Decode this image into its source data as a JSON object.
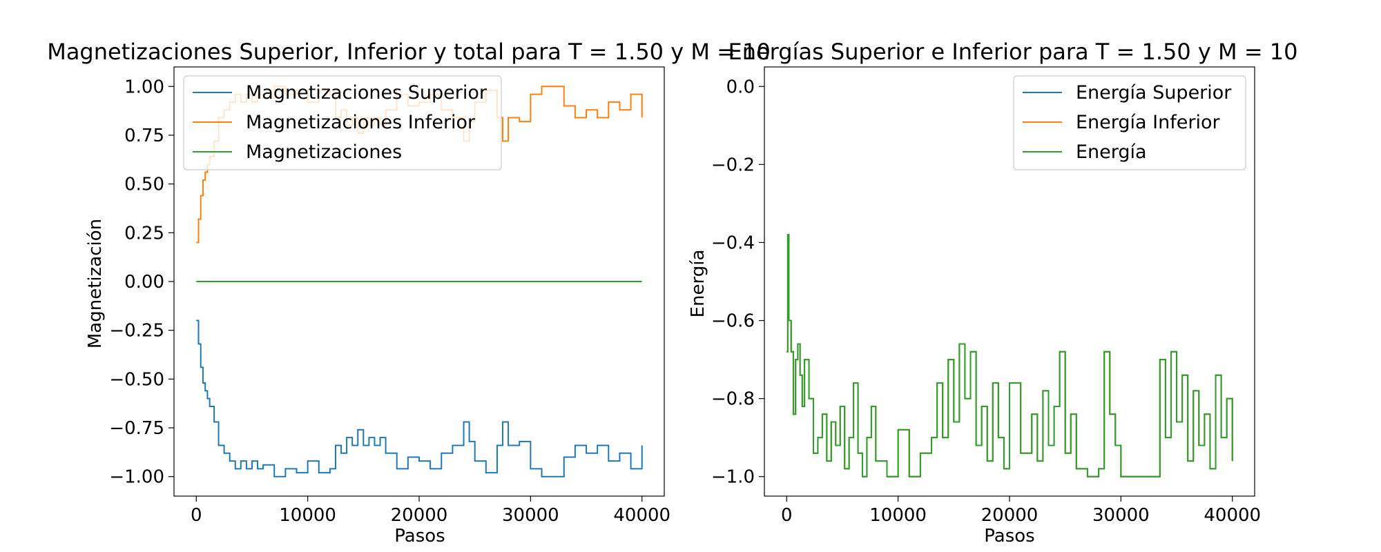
{
  "chart_data": [
    {
      "type": "line",
      "title": "Magnetizaciones Superior, Inferior y total para T = 1.50 y M = 10",
      "xlabel": "Pasos",
      "ylabel": "Magnetización",
      "xlim": [
        -2000,
        42000
      ],
      "ylim": [
        -1.1,
        1.1
      ],
      "xticks": [
        0,
        10000,
        20000,
        30000,
        40000
      ],
      "xtick_labels": [
        "0",
        "10000",
        "20000",
        "30000",
        "40000"
      ],
      "yticks": [
        1.0,
        0.75,
        0.5,
        0.25,
        0.0,
        -0.25,
        -0.5,
        -0.75,
        -1.0
      ],
      "ytick_labels": [
        "1.00",
        "0.75",
        "0.50",
        "0.25",
        "0.00",
        "−0.25",
        "−0.50",
        "−0.75",
        "−1.00"
      ],
      "grid": false,
      "legend_position": "top-left",
      "series": [
        {
          "name": "Magnetizaciones Superior",
          "color": "#1f77b4",
          "x": [
            0,
            200,
            400,
            600,
            800,
            1000,
            1200,
            1600,
            2000,
            2500,
            3000,
            3500,
            4000,
            4500,
            5000,
            5500,
            6000,
            7000,
            8000,
            9000,
            10000,
            11000,
            12000,
            12500,
            13000,
            13500,
            14000,
            14500,
            15000,
            15500,
            16000,
            16500,
            17000,
            18000,
            19000,
            20000,
            21000,
            22000,
            23000,
            24000,
            24500,
            25000,
            26000,
            27000,
            27500,
            28000,
            29000,
            30000,
            31000,
            32000,
            33000,
            34000,
            35000,
            36000,
            37000,
            38000,
            39000,
            40000
          ],
          "y": [
            -0.2,
            -0.32,
            -0.44,
            -0.52,
            -0.56,
            -0.6,
            -0.64,
            -0.72,
            -0.84,
            -0.88,
            -0.92,
            -0.96,
            -0.92,
            -0.96,
            -0.92,
            -0.96,
            -0.94,
            -1.0,
            -0.96,
            -0.98,
            -0.92,
            -0.98,
            -0.96,
            -0.84,
            -0.88,
            -0.8,
            -0.84,
            -0.76,
            -0.84,
            -0.8,
            -0.84,
            -0.8,
            -0.88,
            -0.96,
            -0.9,
            -0.92,
            -0.96,
            -0.88,
            -0.84,
            -0.72,
            -0.82,
            -0.92,
            -0.98,
            -0.84,
            -0.72,
            -0.84,
            -0.82,
            -0.96,
            -1.0,
            -1.0,
            -0.9,
            -0.84,
            -0.88,
            -0.84,
            -0.92,
            -0.88,
            -0.96,
            -0.84
          ]
        },
        {
          "name": "Magnetizaciones Inferior",
          "color": "#ff7f0e",
          "x": [
            0,
            200,
            400,
            600,
            800,
            1000,
            1200,
            1600,
            2000,
            2500,
            3000,
            3500,
            4000,
            4500,
            5000,
            5500,
            6000,
            7000,
            8000,
            9000,
            10000,
            11000,
            12000,
            12500,
            13000,
            13500,
            14000,
            14500,
            15000,
            15500,
            16000,
            16500,
            17000,
            18000,
            19000,
            20000,
            21000,
            22000,
            23000,
            24000,
            24500,
            25000,
            26000,
            27000,
            27500,
            28000,
            29000,
            30000,
            31000,
            32000,
            33000,
            34000,
            35000,
            36000,
            37000,
            38000,
            39000,
            40000
          ],
          "y": [
            0.2,
            0.32,
            0.44,
            0.52,
            0.56,
            0.6,
            0.64,
            0.72,
            0.84,
            0.88,
            0.92,
            0.96,
            0.92,
            0.96,
            0.92,
            0.96,
            0.94,
            1.0,
            0.96,
            0.98,
            0.92,
            0.98,
            0.96,
            0.84,
            0.88,
            0.8,
            0.84,
            0.76,
            0.84,
            0.8,
            0.84,
            0.8,
            0.88,
            0.96,
            0.9,
            0.92,
            0.96,
            0.88,
            0.84,
            0.72,
            0.82,
            0.92,
            0.98,
            0.84,
            0.72,
            0.84,
            0.82,
            0.96,
            1.0,
            1.0,
            0.9,
            0.84,
            0.88,
            0.84,
            0.92,
            0.88,
            0.96,
            0.84
          ]
        },
        {
          "name": "Magnetizaciones",
          "color": "#2ca02c",
          "x": [
            0,
            40000
          ],
          "y": [
            0.0,
            0.0
          ]
        }
      ]
    },
    {
      "type": "line",
      "title": "Energías Superior e Inferior para T = 1.50 y M = 10",
      "xlabel": "Pasos",
      "ylabel": "Energía",
      "xlim": [
        -2000,
        42000
      ],
      "ylim": [
        -1.05,
        0.05
      ],
      "xticks": [
        0,
        10000,
        20000,
        30000,
        40000
      ],
      "xtick_labels": [
        "0",
        "10000",
        "20000",
        "30000",
        "40000"
      ],
      "yticks": [
        0.0,
        -0.2,
        -0.4,
        -0.6,
        -0.8,
        -1.0
      ],
      "ytick_labels": [
        "0.0",
        "−0.2",
        "−0.4",
        "−0.6",
        "−0.8",
        "−1.0"
      ],
      "grid": false,
      "legend_position": "top-right",
      "series": [
        {
          "name": "Energía Superior",
          "color": "#1f77b4",
          "x": [
            0,
            100,
            200,
            400,
            600,
            800,
            1000,
            1200,
            1400,
            1600,
            2000,
            2400,
            2800,
            3200,
            3600,
            4000,
            4400,
            4800,
            5200,
            5600,
            6000,
            6400,
            6800,
            7200,
            7600,
            8000,
            9000,
            10000,
            11000,
            12000,
            13000,
            13500,
            14000,
            14500,
            15000,
            15500,
            16000,
            16500,
            17000,
            17500,
            18000,
            18500,
            19000,
            19500,
            20000,
            21000,
            22000,
            22500,
            23000,
            23500,
            24000,
            24500,
            25000,
            25500,
            26000,
            27000,
            28000,
            28500,
            29000,
            29500,
            30000,
            31000,
            32000,
            33000,
            33500,
            34000,
            34500,
            35000,
            35500,
            36000,
            36500,
            37000,
            37500,
            38000,
            38500,
            39000,
            39500,
            40000
          ],
          "y": [
            -0.68,
            -0.38,
            -0.6,
            -0.68,
            -0.84,
            -0.7,
            -0.66,
            -0.74,
            -0.82,
            -0.7,
            -0.8,
            -0.94,
            -0.9,
            -0.84,
            -0.96,
            -0.86,
            -0.92,
            -0.82,
            -0.98,
            -0.9,
            -0.76,
            -0.94,
            -1.0,
            -0.9,
            -0.82,
            -0.96,
            -1.0,
            -0.88,
            -1.0,
            -0.94,
            -0.9,
            -0.76,
            -0.9,
            -0.7,
            -0.86,
            -0.66,
            -0.8,
            -0.68,
            -0.92,
            -0.82,
            -0.96,
            -0.76,
            -0.9,
            -0.98,
            -0.76,
            -0.94,
            -0.84,
            -0.96,
            -0.78,
            -0.92,
            -0.82,
            -0.68,
            -0.94,
            -0.84,
            -0.98,
            -1.0,
            -0.98,
            -0.68,
            -0.84,
            -0.92,
            -1.0,
            -1.0,
            -1.0,
            -1.0,
            -0.7,
            -0.9,
            -0.68,
            -0.86,
            -0.74,
            -0.96,
            -0.78,
            -0.92,
            -0.84,
            -0.98,
            -0.74,
            -0.9,
            -0.8,
            -0.96
          ]
        },
        {
          "name": "Energía Inferior",
          "color": "#ff7f0e",
          "x": [
            0,
            100,
            200,
            400,
            600,
            800,
            1000,
            1200,
            1400,
            1600,
            2000,
            2400,
            2800,
            3200,
            3600,
            4000,
            4400,
            4800,
            5200,
            5600,
            6000,
            6400,
            6800,
            7200,
            7600,
            8000,
            9000,
            10000,
            11000,
            12000,
            13000,
            13500,
            14000,
            14500,
            15000,
            15500,
            16000,
            16500,
            17000,
            17500,
            18000,
            18500,
            19000,
            19500,
            20000,
            21000,
            22000,
            22500,
            23000,
            23500,
            24000,
            24500,
            25000,
            25500,
            26000,
            27000,
            28000,
            28500,
            29000,
            29500,
            30000,
            31000,
            32000,
            33000,
            33500,
            34000,
            34500,
            35000,
            35500,
            36000,
            36500,
            37000,
            37500,
            38000,
            38500,
            39000,
            39500,
            40000
          ],
          "y": [
            -0.68,
            -0.38,
            -0.6,
            -0.68,
            -0.84,
            -0.7,
            -0.66,
            -0.74,
            -0.82,
            -0.7,
            -0.8,
            -0.94,
            -0.9,
            -0.84,
            -0.96,
            -0.86,
            -0.92,
            -0.82,
            -0.98,
            -0.9,
            -0.76,
            -0.94,
            -1.0,
            -0.9,
            -0.82,
            -0.96,
            -1.0,
            -0.88,
            -1.0,
            -0.94,
            -0.9,
            -0.76,
            -0.9,
            -0.7,
            -0.86,
            -0.66,
            -0.8,
            -0.68,
            -0.92,
            -0.82,
            -0.96,
            -0.76,
            -0.9,
            -0.98,
            -0.76,
            -0.94,
            -0.84,
            -0.96,
            -0.78,
            -0.92,
            -0.82,
            -0.68,
            -0.94,
            -0.84,
            -0.98,
            -1.0,
            -0.98,
            -0.68,
            -0.84,
            -0.92,
            -1.0,
            -1.0,
            -1.0,
            -1.0,
            -0.7,
            -0.9,
            -0.68,
            -0.86,
            -0.74,
            -0.96,
            -0.78,
            -0.92,
            -0.84,
            -0.98,
            -0.74,
            -0.9,
            -0.8,
            -0.96
          ]
        },
        {
          "name": "Energía",
          "color": "#2ca02c",
          "x": [
            0,
            100,
            200,
            400,
            600,
            800,
            1000,
            1200,
            1400,
            1600,
            2000,
            2400,
            2800,
            3200,
            3600,
            4000,
            4400,
            4800,
            5200,
            5600,
            6000,
            6400,
            6800,
            7200,
            7600,
            8000,
            9000,
            10000,
            11000,
            12000,
            13000,
            13500,
            14000,
            14500,
            15000,
            15500,
            16000,
            16500,
            17000,
            17500,
            18000,
            18500,
            19000,
            19500,
            20000,
            21000,
            22000,
            22500,
            23000,
            23500,
            24000,
            24500,
            25000,
            25500,
            26000,
            27000,
            28000,
            28500,
            29000,
            29500,
            30000,
            31000,
            32000,
            33000,
            33500,
            34000,
            34500,
            35000,
            35500,
            36000,
            36500,
            37000,
            37500,
            38000,
            38500,
            39000,
            39500,
            40000
          ],
          "y": [
            -0.68,
            -0.38,
            -0.6,
            -0.68,
            -0.84,
            -0.7,
            -0.66,
            -0.74,
            -0.82,
            -0.7,
            -0.8,
            -0.94,
            -0.9,
            -0.84,
            -0.96,
            -0.86,
            -0.92,
            -0.82,
            -0.98,
            -0.9,
            -0.76,
            -0.94,
            -1.0,
            -0.9,
            -0.82,
            -0.96,
            -1.0,
            -0.88,
            -1.0,
            -0.94,
            -0.9,
            -0.76,
            -0.9,
            -0.7,
            -0.86,
            -0.66,
            -0.8,
            -0.68,
            -0.92,
            -0.82,
            -0.96,
            -0.76,
            -0.9,
            -0.98,
            -0.76,
            -0.94,
            -0.84,
            -0.96,
            -0.78,
            -0.92,
            -0.82,
            -0.68,
            -0.94,
            -0.84,
            -0.98,
            -1.0,
            -0.98,
            -0.68,
            -0.84,
            -0.92,
            -1.0,
            -1.0,
            -1.0,
            -1.0,
            -0.7,
            -0.9,
            -0.68,
            -0.86,
            -0.74,
            -0.96,
            -0.78,
            -0.92,
            -0.84,
            -0.98,
            -0.74,
            -0.9,
            -0.8,
            -0.96
          ]
        }
      ]
    }
  ]
}
